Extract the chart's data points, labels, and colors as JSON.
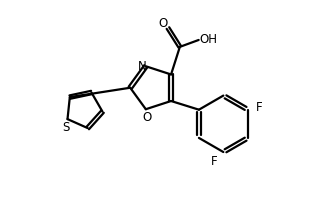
{
  "bg_color": "#ffffff",
  "line_color": "#000000",
  "line_width": 1.6,
  "font_size": 8.5,
  "figsize": [
    3.15,
    2.01
  ],
  "dpi": 100,
  "xlim": [
    0,
    10
  ],
  "ylim": [
    0,
    6.35
  ]
}
